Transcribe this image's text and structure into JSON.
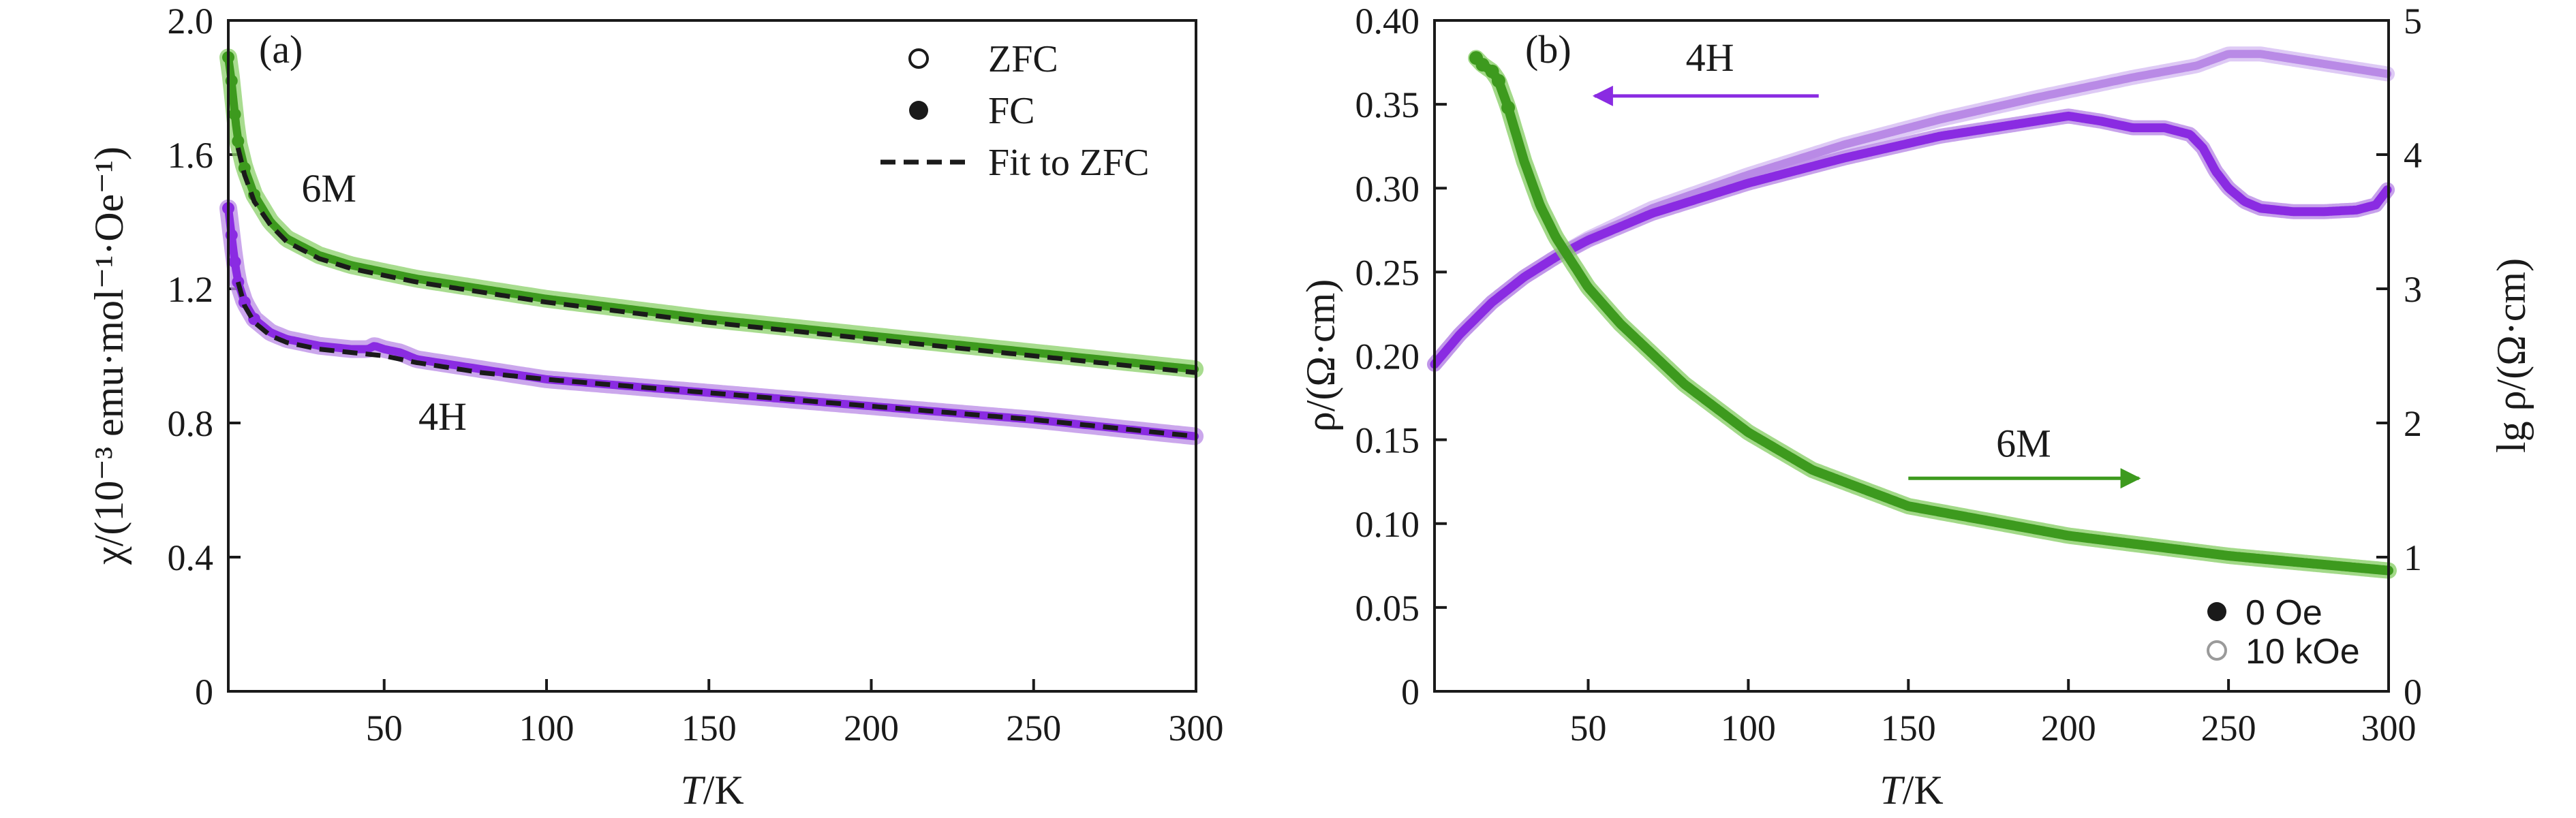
{
  "colors": {
    "green": "#3d9a1e",
    "green_light": "#8bd06a",
    "purple": "#8a2be2",
    "purple_light": "#b98ae6",
    "fit": "#1a1a1a",
    "axis": "#1a1a1a"
  },
  "chart_data": [
    {
      "id": "a",
      "type": "scatter",
      "panel_label": "(a)",
      "xlabel": "T/K",
      "ylabel": "χ/(10⁻³ emu·mol⁻¹·Oe⁻¹)",
      "xlim": [
        2,
        300
      ],
      "ylim": [
        0,
        2.0
      ],
      "xticks": [
        50,
        100,
        150,
        200,
        250,
        300
      ],
      "xtick_labels": [
        "50",
        "100",
        "150",
        "200",
        "250",
        "300"
      ],
      "yticks": [
        0,
        0.4,
        0.8,
        1.2,
        1.6,
        2.0
      ],
      "ytick_labels": [
        "0",
        "0.4",
        "0.8",
        "1.2",
        "1.6",
        "2.0"
      ],
      "legend": [
        {
          "label": "ZFC",
          "marker": "open-circle"
        },
        {
          "label": "FC",
          "marker": "filled-circle"
        },
        {
          "label": "Fit to ZFC",
          "marker": "dashed-line"
        }
      ],
      "legend_position": "top-right",
      "annotations": [
        {
          "text": "6M",
          "x": 33,
          "y": 1.46
        },
        {
          "text": "4H",
          "x": 68,
          "y": 0.78
        }
      ],
      "series": [
        {
          "name": "6M",
          "color_key": "green",
          "x": [
            2,
            3,
            4,
            5,
            7,
            10,
            15,
            20,
            30,
            40,
            50,
            60,
            80,
            100,
            150,
            200,
            250,
            300
          ],
          "y": [
            1.89,
            1.82,
            1.72,
            1.64,
            1.56,
            1.48,
            1.4,
            1.35,
            1.3,
            1.27,
            1.25,
            1.23,
            1.2,
            1.17,
            1.11,
            1.06,
            1.01,
            0.96
          ]
        },
        {
          "name": "4H",
          "color_key": "purple",
          "x": [
            2,
            3,
            4,
            5,
            7,
            10,
            15,
            20,
            30,
            40,
            45,
            47,
            50,
            55,
            60,
            80,
            100,
            150,
            200,
            250,
            300
          ],
          "y": [
            1.44,
            1.36,
            1.28,
            1.22,
            1.16,
            1.11,
            1.07,
            1.05,
            1.03,
            1.02,
            1.02,
            1.03,
            1.02,
            1.01,
            0.99,
            0.96,
            0.93,
            0.89,
            0.85,
            0.81,
            0.76
          ]
        },
        {
          "name": "Fit to ZFC (6M)",
          "color_key": "fit",
          "style": "dashed",
          "x": [
            5,
            7,
            10,
            15,
            20,
            30,
            40,
            50,
            60,
            80,
            100,
            150,
            200,
            250,
            300
          ],
          "y": [
            1.62,
            1.54,
            1.46,
            1.39,
            1.34,
            1.29,
            1.26,
            1.24,
            1.22,
            1.19,
            1.16,
            1.1,
            1.05,
            1.0,
            0.95
          ]
        },
        {
          "name": "Fit to ZFC (4H)",
          "color_key": "fit",
          "style": "dashed",
          "x": [
            5,
            7,
            10,
            15,
            20,
            30,
            40,
            50,
            60,
            80,
            100,
            150,
            200,
            250,
            300
          ],
          "y": [
            1.22,
            1.15,
            1.1,
            1.06,
            1.04,
            1.02,
            1.01,
            1.0,
            0.98,
            0.95,
            0.93,
            0.89,
            0.85,
            0.81,
            0.76
          ]
        }
      ]
    },
    {
      "id": "b",
      "type": "line",
      "panel_label": "(b)",
      "xlabel": "T/K",
      "ylabel_left": "ρ/(Ω·cm)",
      "ylabel_right": "lg ρ/(Ω·cm)",
      "xlim": [
        2,
        300
      ],
      "ylim_left": [
        0,
        0.4
      ],
      "ylim_right": [
        0,
        5
      ],
      "xticks": [
        50,
        100,
        150,
        200,
        250,
        300
      ],
      "xtick_labels": [
        "50",
        "100",
        "150",
        "200",
        "250",
        "300"
      ],
      "yticks_left": [
        0,
        0.05,
        0.1,
        0.15,
        0.2,
        0.25,
        0.3,
        0.35,
        0.4
      ],
      "ytick_labels_left": [
        "0",
        "0.05",
        "0.10",
        "0.15",
        "0.20",
        "0.25",
        "0.30",
        "0.35",
        "0.40"
      ],
      "yticks_right": [
        0,
        1,
        2,
        3,
        4,
        5
      ],
      "ytick_labels_right": [
        "0",
        "1",
        "2",
        "3",
        "4",
        "5"
      ],
      "legend": [
        {
          "label": "0 Oe",
          "marker": "filled-circle"
        },
        {
          "label": "10 kOe",
          "marker": "open-circle"
        }
      ],
      "legend_position": "bottom-right",
      "annotations": [
        {
          "text": "4H",
          "arrow": "left",
          "x_from": 122,
          "x_to": 52,
          "y": 0.355,
          "color_key": "purple",
          "text_x": 88,
          "text_y": 0.37
        },
        {
          "text": "6M",
          "arrow": "right",
          "x_from": 150,
          "x_to": 222,
          "y": 0.127,
          "color_key": "green",
          "text_x": 186,
          "text_y": 0.14
        }
      ],
      "series": [
        {
          "name": "4H, 0 Oe",
          "axis": "left",
          "color_key": "purple",
          "x": [
            2,
            10,
            20,
            30,
            40,
            50,
            70,
            100,
            130,
            160,
            190,
            200,
            210,
            220,
            230,
            238,
            242,
            246,
            250,
            255,
            260,
            270,
            280,
            290,
            296,
            300
          ],
          "y": [
            0.195,
            0.213,
            0.232,
            0.247,
            0.259,
            0.269,
            0.285,
            0.303,
            0.318,
            0.331,
            0.34,
            0.343,
            0.34,
            0.336,
            0.336,
            0.332,
            0.324,
            0.31,
            0.3,
            0.292,
            0.288,
            0.286,
            0.286,
            0.287,
            0.29,
            0.3
          ]
        },
        {
          "name": "4H, 10 kOe",
          "axis": "left",
          "color_key": "purple_light",
          "x": [
            2,
            10,
            20,
            30,
            40,
            50,
            70,
            100,
            130,
            160,
            190,
            220,
            240,
            250,
            260,
            270,
            280,
            290,
            300
          ],
          "y": [
            0.195,
            0.213,
            0.232,
            0.247,
            0.259,
            0.27,
            0.288,
            0.308,
            0.326,
            0.341,
            0.354,
            0.366,
            0.373,
            0.38,
            0.38,
            0.377,
            0.374,
            0.371,
            0.368
          ]
        },
        {
          "name": "6M",
          "axis": "right",
          "color_key": "green",
          "x": [
            15,
            17,
            20,
            22,
            25,
            30,
            35,
            40,
            50,
            60,
            80,
            100,
            120,
            150,
            200,
            250,
            300
          ],
          "y": [
            4.72,
            4.67,
            4.62,
            4.55,
            4.35,
            3.95,
            3.62,
            3.38,
            3.01,
            2.74,
            2.29,
            1.93,
            1.65,
            1.38,
            1.16,
            1.01,
            0.9
          ]
        }
      ]
    }
  ]
}
